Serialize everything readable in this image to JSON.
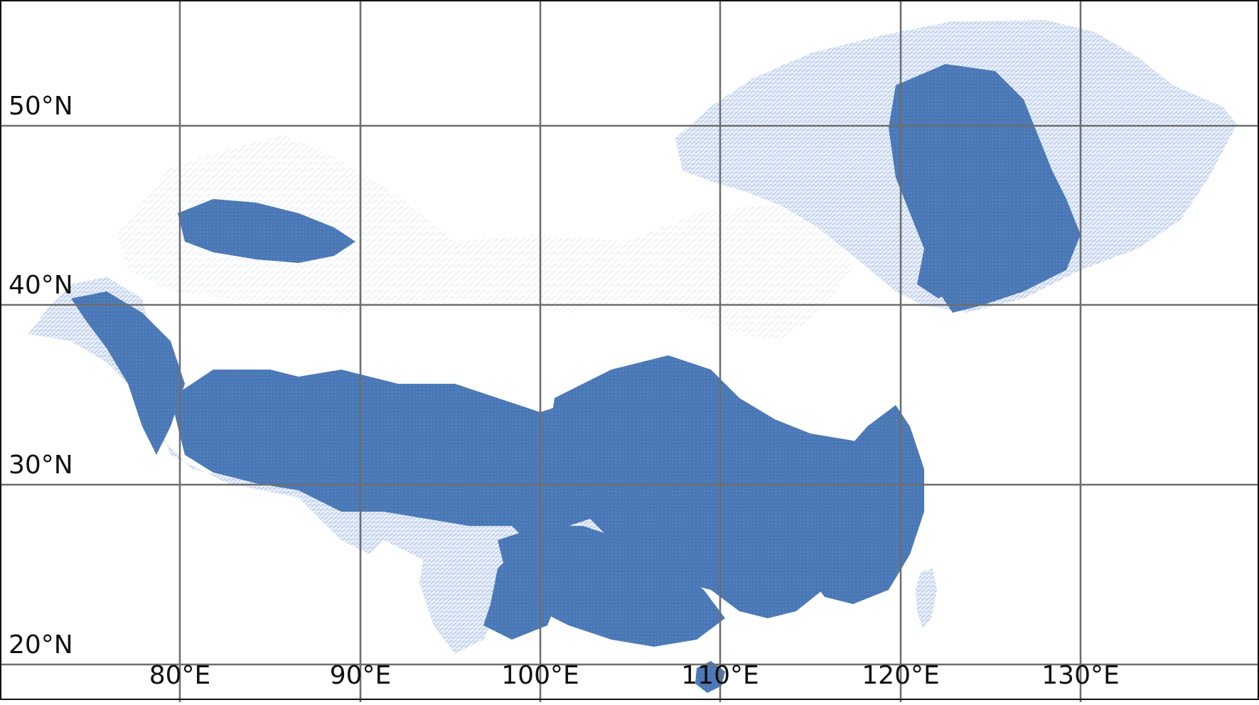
{
  "map": {
    "colors": {
      "dense_river": "#4a78b6",
      "sparse_river": "#9bb3de",
      "grid": "#6e6e6e",
      "frame": "#111111",
      "background": "#ffffff"
    },
    "lat_labels": [
      "50°N",
      "40°N",
      "30°N",
      "20°N"
    ],
    "lon_labels": [
      "80°E",
      "90°E",
      "100°E",
      "110°E",
      "120°E",
      "130°E"
    ]
  }
}
